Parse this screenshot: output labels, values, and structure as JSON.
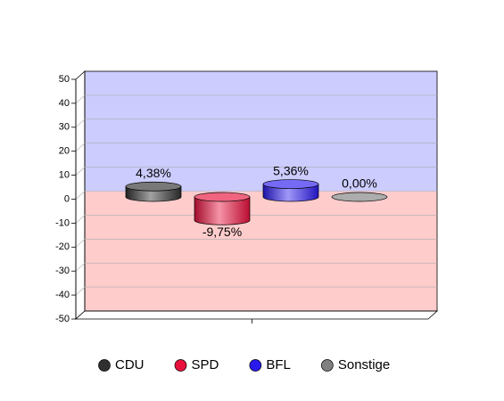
{
  "chart_data": {
    "type": "bar3d",
    "categories": [
      null
    ],
    "series": [
      {
        "name": "CDU",
        "color": "#303030",
        "values": [
          4.38
        ],
        "value_labels": [
          "4,38%"
        ]
      },
      {
        "name": "SPD",
        "color": "#e8103c",
        "values": [
          -9.75
        ],
        "value_labels": [
          "-9,75%"
        ]
      },
      {
        "name": "BFL",
        "color": "#2b1aee",
        "values": [
          5.36
        ],
        "value_labels": [
          "5,36%"
        ]
      },
      {
        "name": "Sonstige",
        "color": "#808080",
        "values": [
          0.0
        ],
        "value_labels": [
          "0,00%"
        ]
      }
    ],
    "ylim": [
      -50,
      50
    ],
    "yticks": [
      -50,
      -40,
      -30,
      -20,
      -10,
      0,
      10,
      20,
      30,
      40,
      50
    ],
    "grid": true,
    "positive_wall_color": "#ccccff",
    "negative_wall_color": "#ffcccc",
    "legend": "bottom"
  }
}
